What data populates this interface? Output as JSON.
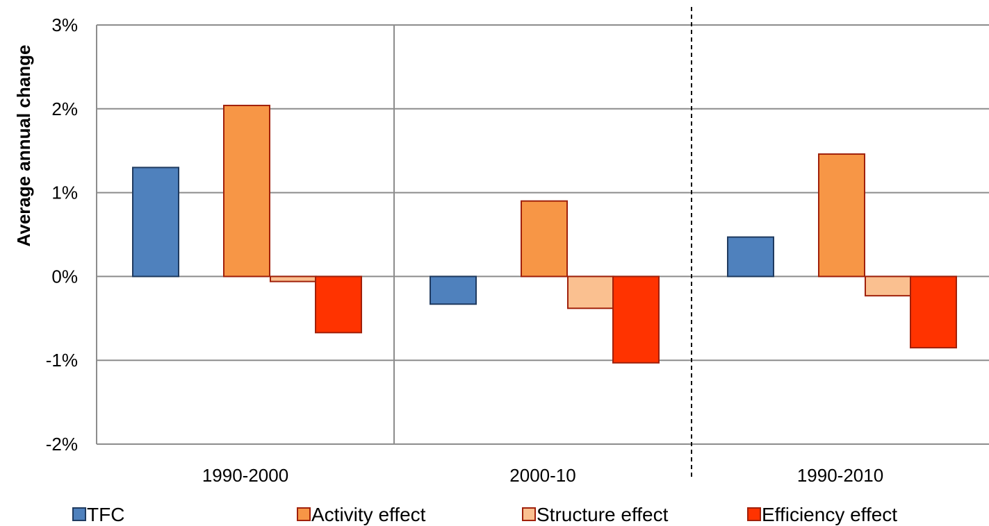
{
  "chart_data": {
    "type": "bar",
    "title": "",
    "xlabel": "",
    "ylabel": "Average annual change",
    "ylim": [
      -0.02,
      0.03
    ],
    "yticks": [
      {
        "value": 0.03,
        "label": "3%"
      },
      {
        "value": 0.02,
        "label": "2%"
      },
      {
        "value": 0.01,
        "label": "1%"
      },
      {
        "value": 0.0,
        "label": "0%"
      },
      {
        "value": -0.01,
        "label": "-1%"
      },
      {
        "value": -0.02,
        "label": "-2%"
      }
    ],
    "categories": [
      "1990-2000",
      "2000-10",
      "1990-2010"
    ],
    "series": [
      {
        "name": "TFC",
        "color": "#4f81bd",
        "stroke": "#1f3a5f",
        "values": [
          0.013,
          -0.0033,
          0.0047
        ]
      },
      {
        "name": "Activity effect",
        "color": "#f79646",
        "stroke": "#a0200a",
        "values": [
          0.0204,
          0.009,
          0.0146
        ]
      },
      {
        "name": "Structure effect",
        "color": "#fac090",
        "stroke": "#a0200a",
        "values": [
          -0.0006,
          -0.0038,
          -0.0023
        ]
      },
      {
        "name": "Efficiency effect",
        "color": "#ff3300",
        "stroke": "#a0200a",
        "values": [
          -0.0067,
          -0.0103,
          -0.0085
        ]
      }
    ],
    "grid": true,
    "separator_after_category": 1,
    "legend_position": "bottom"
  }
}
